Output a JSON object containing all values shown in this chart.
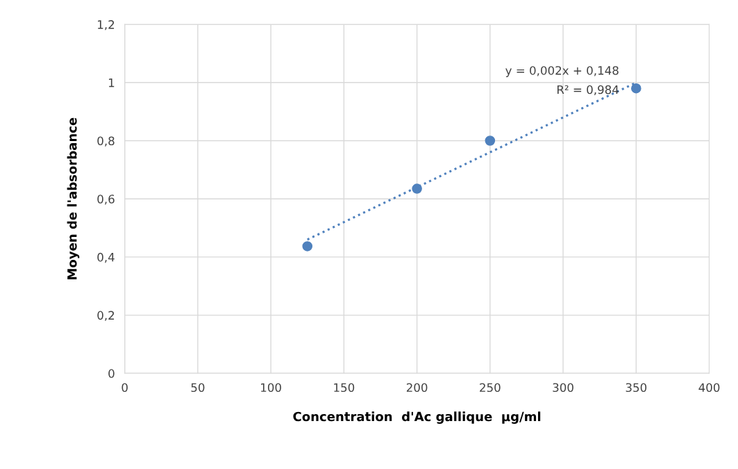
{
  "chart_data": {
    "type": "scatter",
    "xlabel": "Concentration  d'Ac gallique  µg/ml",
    "ylabel": "Moyen de l'absorbance",
    "series": [
      {
        "color": "#4f81bd",
        "marker": "circle",
        "x": [
          125,
          200,
          250,
          350
        ],
        "values": [
          0.437,
          0.635,
          0.8,
          0.98
        ]
      },
      {
        "type": "line",
        "color": "#4f81bd",
        "line_style": "dotted",
        "marker": "none",
        "x": [
          125,
          350
        ],
        "values": [
          0.46,
          1.0
        ]
      }
    ],
    "xlim": [
      0,
      400
    ],
    "xticks": [
      0,
      50,
      100,
      150,
      200,
      250,
      300,
      350,
      400
    ],
    "ylim": [
      0,
      1.2
    ],
    "yticks": [
      0,
      {
        "value": 0.2,
        "label": "0,2"
      },
      {
        "value": 0.4,
        "label": "0,4"
      },
      {
        "value": 0.6,
        "label": "0,6"
      },
      {
        "value": 0.8,
        "label": "0,8"
      },
      1,
      {
        "value": 1.2,
        "label": "1,2"
      }
    ],
    "grid": true,
    "annotations": [
      "y = 0,002x + 0,148",
      "R² = 0,984"
    ]
  }
}
